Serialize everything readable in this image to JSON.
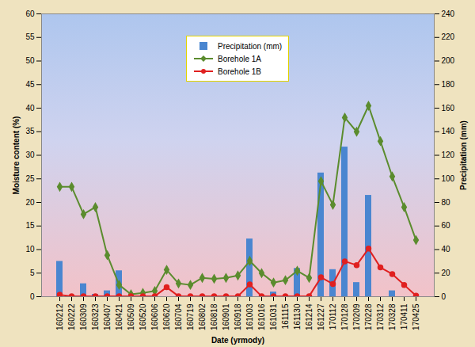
{
  "chart_data": {
    "type": "bar",
    "x_label": "Date (yrmody)",
    "y_label": "Moisture content (%)",
    "y2_label": "Precipitation (mm)",
    "categories": [
      "160212",
      "160222",
      "160309",
      "160323",
      "160407",
      "160421",
      "160509",
      "160520",
      "160606",
      "160620",
      "160704",
      "160719",
      "160802",
      "160818",
      "160901",
      "160918",
      "161003",
      "161016",
      "161031",
      "161115",
      "161130",
      "161214",
      "161227",
      "170112",
      "170128",
      "170209",
      "170228",
      "170312",
      "170328",
      "170411",
      "170425"
    ],
    "series": [
      {
        "name": "Precipitation (mm)",
        "type": "bar",
        "axis": "y2",
        "color": "#4a86d0",
        "values": [
          30,
          0,
          11,
          2,
          5,
          22,
          0,
          0,
          0,
          0,
          0,
          0,
          0,
          0,
          0,
          0,
          49,
          0,
          4,
          0,
          24,
          0,
          105,
          23,
          127,
          12,
          86,
          0,
          5,
          0,
          0
        ]
      },
      {
        "name": "Borehole 1A",
        "type": "line",
        "color": "#5b8c2e",
        "marker": "diamond",
        "line_style": "solid",
        "values": [
          23.3,
          23.3,
          17.5,
          19,
          8.8,
          2.5,
          0.5,
          0.8,
          1.2,
          5.7,
          2.8,
          2.5,
          4,
          3.8,
          4,
          4.5,
          7.6,
          5,
          3,
          3.5,
          5.5,
          4,
          24.5,
          19.5,
          38,
          35,
          40.5,
          33,
          25.5,
          19,
          12
        ]
      },
      {
        "name": "Borehole 1B",
        "type": "line",
        "color": "#e02020",
        "marker": "circle",
        "line_style": "solid",
        "values": [
          0.4,
          0.1,
          0.1,
          0.1,
          0.1,
          0.1,
          0.1,
          0.1,
          0.1,
          2,
          0.1,
          0.1,
          0.1,
          0.1,
          0.1,
          0.1,
          2.6,
          0.1,
          0.1,
          0.1,
          0.1,
          0.1,
          4.1,
          2.7,
          7.5,
          6.7,
          10.2,
          6.2,
          4.8,
          2.5,
          0.2
        ]
      }
    ],
    "ylim": [
      0,
      60
    ],
    "yticks": [
      0,
      5,
      10,
      15,
      20,
      25,
      30,
      35,
      40,
      45,
      50,
      55,
      60
    ],
    "y2lim": [
      0,
      240
    ],
    "y2ticks": [
      0,
      20,
      40,
      60,
      80,
      100,
      120,
      140,
      160,
      180,
      200,
      220,
      240
    ],
    "grid": false,
    "legend": "top"
  }
}
